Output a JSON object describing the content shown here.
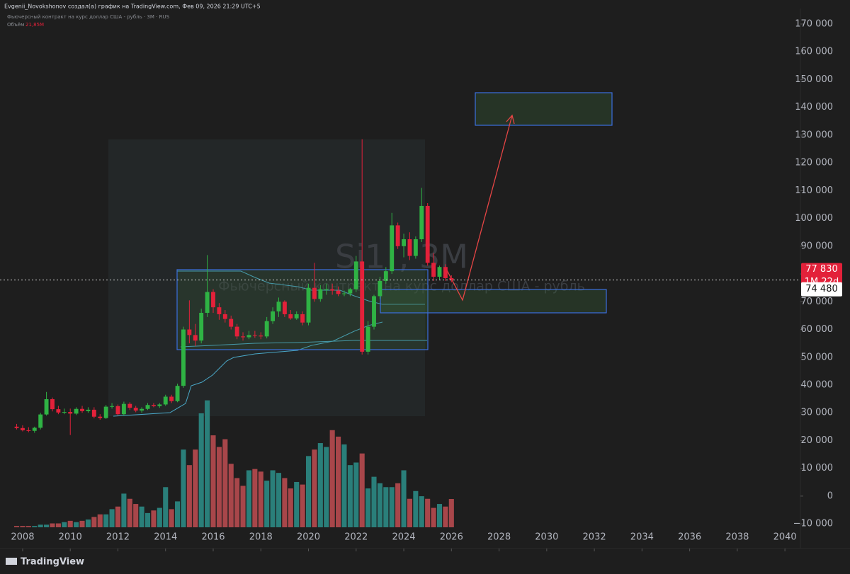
{
  "header": {
    "author_line": "Evgenii_Novokshonov создал(а) график на TradingView.com, Фев 09, 2026 21:29 UTC+5"
  },
  "footer": {
    "brand": "TradingView"
  },
  "chart_data": {
    "type": "candlestick",
    "symbol_line": "Фьючерсный контракт на курс доллар США - рубль · 3М · RUS",
    "watermark_symbol": "Si1!, 3M",
    "watermark_description": "Фьючерсный контракт на курс доллар США - рубль",
    "volume_name": "Объём",
    "volume_last_label": "21,85M",
    "up_color": "#2fb344",
    "down_color": "#e3213a",
    "volume_up_color": "#2a7f7a",
    "volume_down_color": "#a8464a",
    "xlim": [
      2007.05,
      2040.65
    ],
    "xticks": [
      2008,
      2010,
      2012,
      2014,
      2016,
      2018,
      2020,
      2022,
      2024,
      2026,
      2028,
      2030,
      2032,
      2034,
      2036,
      2038,
      2040
    ],
    "ylim": [
      -12000,
      175600
    ],
    "yticks": [
      {
        "value": -10000,
        "label": "−10 000"
      },
      0,
      {
        "value": 10000,
        "label": "10 000"
      },
      {
        "value": 20000,
        "label": "20 000"
      },
      {
        "value": 30000,
        "label": "30 000"
      },
      {
        "value": 40000,
        "label": "40 000"
      },
      {
        "value": 50000,
        "label": "50 000"
      },
      {
        "value": 60000,
        "label": "60 000"
      },
      {
        "value": 70000,
        "label": "70 000"
      },
      {
        "value": 80000,
        "label": "80 000"
      },
      {
        "value": 90000,
        "label": "90 000"
      },
      {
        "value": 100000,
        "label": "100 000"
      },
      {
        "value": 110000,
        "label": "110 000"
      },
      {
        "value": 120000,
        "label": "120 000"
      },
      {
        "value": 130000,
        "label": "130 000"
      },
      {
        "value": 140000,
        "label": "140 000"
      },
      {
        "value": 150000,
        "label": "150 000"
      },
      {
        "value": 160000,
        "label": "160 000"
      },
      {
        "value": 170000,
        "label": "170 000"
      }
    ],
    "volume_lim": [
      0,
      100
    ],
    "current_price": {
      "value": 77830,
      "label": "77 830"
    },
    "countdown": "1M 22d",
    "level_price": {
      "value": 74480,
      "label": "74 480"
    },
    "x": [
      2007.75,
      2008,
      2008.25,
      2008.5,
      2008.75,
      2009,
      2009.25,
      2009.5,
      2009.75,
      2010,
      2010.25,
      2010.5,
      2010.75,
      2011,
      2011.25,
      2011.5,
      2011.75,
      2012,
      2012.25,
      2012.5,
      2012.75,
      2013,
      2013.25,
      2013.5,
      2013.75,
      2014,
      2014.25,
      2014.5,
      2014.75,
      2015,
      2015.25,
      2015.5,
      2015.75,
      2016,
      2016.25,
      2016.5,
      2016.75,
      2017,
      2017.25,
      2017.5,
      2017.75,
      2018,
      2018.25,
      2018.5,
      2018.75,
      2019,
      2019.25,
      2019.5,
      2019.75,
      2020,
      2020.25,
      2020.5,
      2020.75,
      2021,
      2021.25,
      2021.5,
      2021.75,
      2022,
      2022.25,
      2022.5,
      2022.75,
      2023,
      2023.25,
      2023.5,
      2023.75,
      2024,
      2024.25,
      2024.5,
      2024.75,
      2025,
      2025.25,
      2025.5,
      2025.75,
      2026
    ],
    "open": [
      25000,
      24500,
      23700,
      23500,
      24600,
      29400,
      34900,
      31300,
      30100,
      30300,
      29700,
      31400,
      30600,
      31100,
      28600,
      28100,
      32200,
      32400,
      29500,
      33200,
      31800,
      30800,
      31400,
      32800,
      32400,
      33000,
      35800,
      34200,
      39700,
      60000,
      58000,
      56000,
      66000,
      73500,
      68000,
      65500,
      63800,
      61000,
      57500,
      57200,
      58000,
      57800,
      57500,
      63000,
      66500,
      70000,
      65500,
      64000,
      65500,
      62500,
      75000,
      71000,
      74500,
      74500,
      74000,
      72800,
      73000,
      74500,
      84500,
      52000,
      61000,
      72000,
      77500,
      81000,
      97500,
      90000,
      92500,
      86500,
      92500,
      104500,
      84000,
      79000,
      82500,
      78500
    ],
    "high": [
      26000,
      25500,
      24800,
      25000,
      30000,
      37500,
      35500,
      32500,
      31500,
      31500,
      32000,
      32500,
      32000,
      32000,
      29500,
      32800,
      33500,
      33000,
      34000,
      33800,
      32500,
      32000,
      33500,
      33500,
      33500,
      36500,
      36500,
      40500,
      61000,
      70500,
      62000,
      67500,
      86800,
      74500,
      69500,
      67000,
      65000,
      62000,
      59000,
      59500,
      59500,
      59000,
      64500,
      68000,
      71500,
      70500,
      67000,
      66500,
      66500,
      76500,
      84000,
      76000,
      76500,
      76500,
      75500,
      74000,
      75000,
      86500,
      128500,
      63000,
      72500,
      79000,
      82500,
      102000,
      98500,
      94500,
      95000,
      93500,
      111000,
      105500,
      87500,
      83000,
      83500,
      79500
    ],
    "low": [
      24000,
      23300,
      23000,
      22800,
      24000,
      29000,
      30500,
      29500,
      29500,
      22000,
      29200,
      30000,
      30000,
      28000,
      27500,
      27800,
      31500,
      29000,
      29000,
      31000,
      30200,
      30000,
      31000,
      32000,
      31800,
      32500,
      33500,
      33800,
      39000,
      55000,
      54000,
      55000,
      64500,
      66000,
      63500,
      62500,
      60000,
      56500,
      56000,
      56500,
      57000,
      56500,
      56800,
      62000,
      64500,
      64500,
      63500,
      63500,
      61500,
      61500,
      70000,
      70000,
      72500,
      72500,
      72000,
      72000,
      72000,
      73500,
      51000,
      51000,
      60000,
      71000,
      76500,
      80000,
      89000,
      86000,
      85000,
      85500,
      91500,
      83000,
      77500,
      78000,
      77500,
      77000
    ],
    "close": [
      24500,
      23700,
      23500,
      24600,
      29400,
      34900,
      31300,
      30100,
      30300,
      29700,
      31400,
      30600,
      31100,
      28600,
      28100,
      32200,
      32400,
      29500,
      33200,
      31800,
      30800,
      31400,
      32800,
      32400,
      33000,
      35800,
      34200,
      39700,
      60000,
      58000,
      56000,
      66000,
      73500,
      68000,
      65500,
      63800,
      61000,
      57500,
      57200,
      58000,
      57800,
      57500,
      63000,
      66500,
      70000,
      65500,
      64000,
      65500,
      62500,
      75000,
      71000,
      74500,
      74500,
      74000,
      72800,
      73000,
      74500,
      84500,
      52000,
      61000,
      72000,
      77500,
      81000,
      97500,
      90000,
      92500,
      86500,
      92500,
      104500,
      84000,
      79000,
      82500,
      78500,
      77830
    ],
    "volume": [
      1,
      1,
      1,
      1,
      2,
      2,
      3,
      3,
      4,
      5,
      4,
      5,
      6,
      8,
      10,
      10,
      14,
      16,
      26,
      22,
      18,
      16,
      11,
      13,
      15,
      31,
      14,
      20,
      60,
      48,
      60,
      88,
      98,
      71,
      62,
      68,
      49,
      38,
      32,
      44,
      45,
      43,
      36,
      44,
      42,
      38,
      30,
      35,
      33,
      55,
      60,
      65,
      62,
      75,
      70,
      64,
      48,
      50,
      57,
      30,
      39,
      34,
      31,
      31,
      34,
      44,
      22,
      28,
      24,
      22,
      15,
      18,
      16,
      21.85
    ]
  }
}
